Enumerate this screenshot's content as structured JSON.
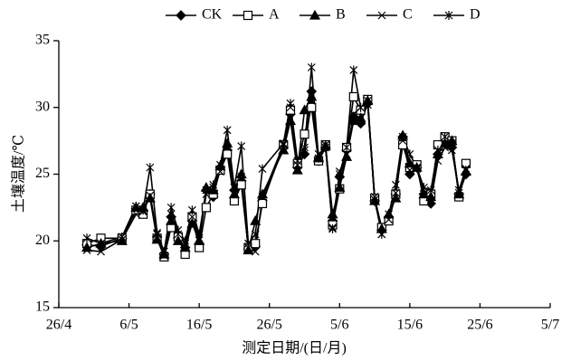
{
  "chart_data": {
    "type": "line",
    "x_label": "测定日期/(日/月)",
    "y_label": "土壤温度/℃",
    "x": [
      "30/4",
      "2/5",
      "5/5",
      "7/5",
      "8/5",
      "9/5",
      "10/5",
      "11/5",
      "12/5",
      "13/5",
      "14/5",
      "15/5",
      "16/5",
      "17/5",
      "18/5",
      "19/5",
      "20/5",
      "21/5",
      "22/5",
      "23/5",
      "24/5",
      "25/5",
      "28/5",
      "29/5",
      "30/5",
      "31/5",
      "1/6",
      "2/6",
      "3/6",
      "4/6",
      "5/6",
      "6/6",
      "7/6",
      "8/6",
      "9/6",
      "10/6",
      "11/6",
      "12/6",
      "13/6",
      "14/6",
      "15/6",
      "16/6",
      "17/6",
      "18/6",
      "19/6",
      "20/6",
      "21/6",
      "22/6",
      "23/6"
    ],
    "series": [
      {
        "name": "CK",
        "marker": "diamond",
        "color": "#000000",
        "values": [
          19.7,
          19.6,
          20.2,
          22.4,
          22.3,
          23.5,
          20.3,
          19.0,
          21.8,
          20.2,
          19.5,
          21.5,
          19.8,
          23.8,
          23.3,
          25.5,
          26.8,
          23.8,
          24.5,
          19.4,
          19.6,
          23.0,
          27.0,
          29.5,
          25.5,
          26.5,
          31.2,
          26.0,
          27.0,
          21.5,
          24.8,
          26.8,
          29.3,
          28.8,
          30.3,
          23.0,
          20.8,
          21.8,
          23.5,
          27.8,
          25.0,
          25.5,
          23.5,
          22.8,
          26.5,
          27.5,
          27.0,
          23.5,
          25.0
        ]
      },
      {
        "name": "A",
        "marker": "square",
        "color": "#000000",
        "values": [
          19.8,
          20.2,
          20.2,
          22.3,
          22.0,
          23.5,
          20.2,
          18.8,
          21.0,
          20.3,
          19.0,
          21.8,
          19.5,
          22.5,
          23.5,
          25.3,
          26.5,
          23.0,
          24.2,
          19.5,
          19.8,
          22.8,
          27.2,
          29.8,
          25.8,
          28.0,
          30.0,
          26.0,
          27.2,
          21.2,
          23.9,
          27.0,
          30.8,
          29.8,
          30.6,
          23.2,
          21.0,
          21.5,
          23.5,
          27.2,
          25.5,
          25.7,
          23.0,
          23.5,
          27.2,
          27.8,
          27.5,
          23.3,
          25.8
        ]
      },
      {
        "name": "B",
        "marker": "triangle",
        "color": "#000000",
        "values": [
          19.5,
          19.8,
          20.0,
          22.5,
          22.5,
          23.2,
          20.1,
          19.0,
          21.5,
          20.0,
          19.5,
          21.3,
          20.0,
          24.0,
          23.8,
          25.6,
          27.3,
          23.5,
          25.0,
          19.3,
          21.5,
          23.5,
          26.8,
          29.0,
          25.3,
          29.8,
          30.8,
          26.2,
          27.1,
          22.0,
          24.0,
          26.3,
          29.0,
          29.2,
          30.5,
          23.0,
          20.9,
          22.0,
          23.2,
          27.9,
          25.8,
          25.5,
          23.5,
          23.3,
          26.5,
          27.3,
          27.5,
          23.5,
          25.2
        ]
      },
      {
        "name": "C",
        "marker": "x",
        "color": "#000000",
        "values": [
          19.3,
          19.2,
          20.1,
          22.0,
          22.2,
          23.4,
          20.5,
          18.9,
          22.0,
          20.5,
          19.8,
          21.8,
          20.2,
          23.5,
          24.0,
          25.2,
          27.0,
          24.0,
          24.8,
          19.5,
          19.2,
          23.3,
          27.2,
          30.0,
          25.7,
          26.8,
          30.5,
          26.5,
          27.0,
          21.0,
          25.2,
          26.5,
          29.5,
          30.0,
          30.2,
          23.3,
          20.5,
          21.6,
          23.6,
          27.5,
          25.3,
          25.4,
          23.5,
          23.0,
          26.0,
          27.0,
          26.8,
          23.8,
          25.4
        ]
      },
      {
        "name": "D",
        "marker": "star",
        "color": "#000000",
        "values": [
          20.2,
          19.8,
          20.3,
          22.6,
          22.3,
          25.5,
          20.6,
          19.2,
          22.5,
          20.8,
          20.0,
          22.3,
          20.5,
          23.8,
          24.2,
          25.7,
          28.3,
          24.0,
          27.1,
          19.8,
          20.5,
          25.4,
          27.3,
          30.3,
          26.0,
          27.0,
          33.0,
          26.2,
          27.2,
          20.9,
          25.0,
          27.0,
          32.8,
          30.0,
          30.5,
          23.1,
          20.5,
          22.0,
          24.2,
          27.8,
          26.5,
          25.5,
          24.0,
          23.8,
          26.8,
          27.8,
          27.3,
          23.6,
          25.3
        ]
      }
    ],
    "xlim": [
      "26/4",
      "5/7"
    ],
    "xticks": [
      "26/4",
      "6/5",
      "16/5",
      "26/5",
      "5/6",
      "15/6",
      "25/6",
      "5/7"
    ],
    "ylim": [
      15,
      35
    ],
    "yticks": [
      15,
      20,
      25,
      30,
      35
    ]
  }
}
